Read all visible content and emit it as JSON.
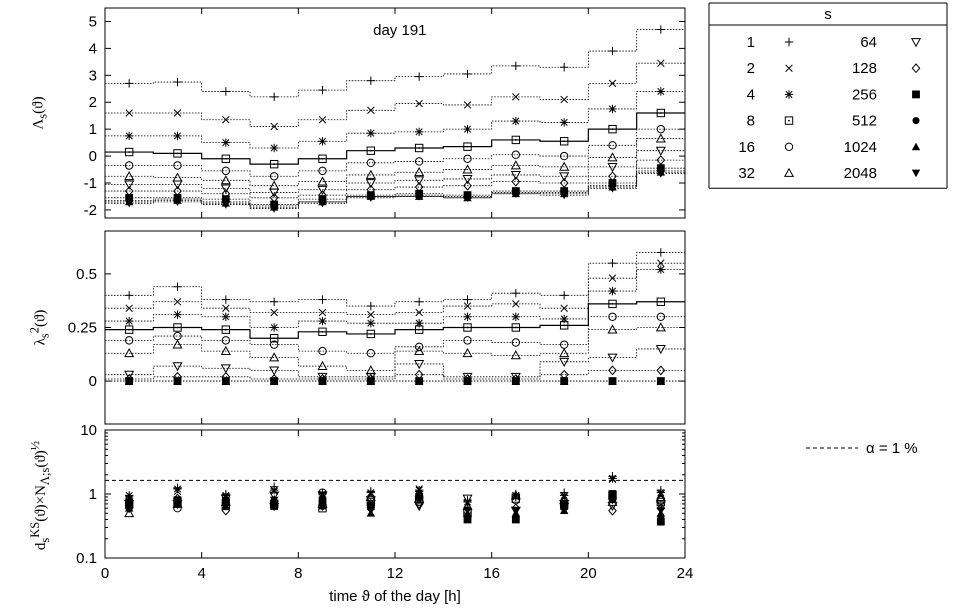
{
  "chart_data": [
    {
      "type": "line",
      "panel": "top",
      "annotation": "day 191",
      "ylabel_html": "Λ<sub>s</sub>(ϑ)",
      "xlim": [
        0,
        24
      ],
      "ylim": [
        -2.3,
        5.5
      ],
      "yticks": [
        -2,
        -1,
        0,
        1,
        2,
        3,
        4,
        5
      ],
      "x": [
        1,
        3,
        5,
        7,
        9,
        11,
        13,
        15,
        17,
        19,
        21,
        23
      ],
      "series": [
        {
          "name": "1",
          "marker": "plus",
          "values": [
            2.7,
            2.75,
            2.4,
            2.2,
            2.45,
            2.8,
            2.95,
            3.05,
            3.35,
            3.3,
            3.9,
            4.7
          ]
        },
        {
          "name": "2",
          "marker": "cross",
          "values": [
            1.6,
            1.6,
            1.35,
            1.1,
            1.35,
            1.7,
            1.95,
            1.9,
            2.2,
            2.1,
            2.7,
            3.45
          ]
        },
        {
          "name": "4",
          "marker": "star",
          "values": [
            0.75,
            0.75,
            0.5,
            0.3,
            0.55,
            0.85,
            0.9,
            1.0,
            1.3,
            1.25,
            1.75,
            2.4
          ]
        },
        {
          "name": "8",
          "marker": "boxdot",
          "values": [
            0.15,
            0.1,
            -0.1,
            -0.3,
            -0.1,
            0.2,
            0.3,
            0.35,
            0.6,
            0.55,
            1.0,
            1.6
          ]
        },
        {
          "name": "16",
          "marker": "circle",
          "values": [
            -0.35,
            -0.35,
            -0.55,
            -0.75,
            -0.55,
            -0.25,
            -0.2,
            -0.1,
            0.05,
            0.0,
            0.4,
            1.0
          ]
        },
        {
          "name": "32",
          "marker": "triangle",
          "values": [
            -0.75,
            -0.8,
            -0.9,
            -1.1,
            -0.95,
            -0.7,
            -0.6,
            -0.5,
            -0.35,
            -0.4,
            -0.05,
            0.65
          ]
        },
        {
          "name": "64",
          "marker": "triangle-down-open",
          "values": [
            -1.05,
            -1.05,
            -1.2,
            -1.35,
            -1.25,
            -1.0,
            -0.9,
            -0.85,
            -0.7,
            -0.75,
            -0.4,
            0.2
          ]
        },
        {
          "name": "128",
          "marker": "diamond",
          "values": [
            -1.3,
            -1.3,
            -1.4,
            -1.55,
            -1.45,
            -1.25,
            -1.15,
            -1.1,
            -0.95,
            -1.0,
            -0.75,
            -0.15
          ]
        },
        {
          "name": "256",
          "marker": "square-filled",
          "values": [
            -1.55,
            -1.55,
            -1.6,
            -1.8,
            -1.6,
            -1.45,
            -1.4,
            -1.45,
            -1.3,
            -1.3,
            -1.0,
            -0.45
          ]
        },
        {
          "name": "512",
          "marker": "circle-filled",
          "values": [
            -1.65,
            -1.6,
            -1.7,
            -1.85,
            -1.7,
            -1.5,
            -1.45,
            -1.5,
            -1.35,
            -1.35,
            -1.1,
            -0.55
          ]
        },
        {
          "name": "1024",
          "marker": "triangle-filled",
          "values": [
            -1.7,
            -1.65,
            -1.75,
            -1.9,
            -1.7,
            -1.5,
            -1.5,
            -1.55,
            -1.4,
            -1.4,
            -1.15,
            -0.6
          ]
        },
        {
          "name": "2048",
          "marker": "triangle-down-filled",
          "values": [
            -1.75,
            -1.7,
            -1.8,
            -1.95,
            -1.75,
            -1.55,
            -1.5,
            -1.55,
            -1.4,
            -1.45,
            -1.2,
            -0.65
          ]
        }
      ]
    },
    {
      "type": "line",
      "panel": "middle",
      "ylabel_html": "λ<sub>s</sub><sup>2</sup>(ϑ)",
      "xlim": [
        0,
        24
      ],
      "ylim": [
        -0.2,
        0.7
      ],
      "yticks": [
        0,
        0.25,
        0.5
      ],
      "ytick_labels": [
        "0",
        "0.25",
        "0.5"
      ],
      "x": [
        1,
        3,
        5,
        7,
        9,
        11,
        13,
        15,
        17,
        19,
        21,
        23
      ],
      "series": [
        {
          "name": "1",
          "marker": "plus",
          "values": [
            0.4,
            0.44,
            0.38,
            0.37,
            0.38,
            0.35,
            0.37,
            0.38,
            0.41,
            0.4,
            0.55,
            0.6
          ]
        },
        {
          "name": "2",
          "marker": "cross",
          "values": [
            0.34,
            0.37,
            0.34,
            0.32,
            0.32,
            0.31,
            0.32,
            0.35,
            0.36,
            0.34,
            0.48,
            0.55
          ]
        },
        {
          "name": "4",
          "marker": "star",
          "values": [
            0.28,
            0.31,
            0.3,
            0.25,
            0.28,
            0.27,
            0.27,
            0.3,
            0.3,
            0.29,
            0.42,
            0.52
          ]
        },
        {
          "name": "8",
          "marker": "boxdot",
          "values": [
            0.24,
            0.25,
            0.24,
            0.2,
            0.23,
            0.22,
            0.24,
            0.25,
            0.25,
            0.26,
            0.36,
            0.37
          ]
        },
        {
          "name": "16",
          "marker": "circle",
          "values": [
            0.19,
            0.21,
            0.19,
            0.17,
            0.14,
            0.13,
            0.16,
            0.19,
            0.18,
            0.17,
            0.3,
            0.3
          ]
        },
        {
          "name": "32",
          "marker": "triangle",
          "values": [
            0.13,
            0.17,
            0.14,
            0.11,
            0.07,
            0.05,
            0.14,
            0.13,
            0.12,
            0.13,
            0.24,
            0.25
          ]
        },
        {
          "name": "64",
          "marker": "triangle-down-open",
          "values": [
            0.03,
            0.07,
            0.06,
            0.05,
            0.02,
            0.02,
            0.08,
            0.02,
            0.02,
            0.09,
            0.11,
            0.15
          ]
        },
        {
          "name": "128",
          "marker": "diamond",
          "values": [
            0.01,
            0.02,
            0.02,
            0.01,
            0.01,
            0.01,
            0.03,
            0.01,
            0.01,
            0.03,
            0.05,
            0.05
          ]
        },
        {
          "name": "256",
          "marker": "square-filled",
          "values": [
            0,
            0,
            0,
            0,
            0,
            0,
            0,
            0,
            0,
            0,
            0,
            0
          ]
        },
        {
          "name": "512",
          "marker": "circle-filled",
          "values": [
            0,
            0,
            0,
            0,
            0,
            0,
            0,
            0,
            0,
            0,
            0,
            0
          ]
        },
        {
          "name": "1024",
          "marker": "triangle-filled",
          "values": [
            0,
            0,
            0,
            0,
            0,
            0,
            0,
            0,
            0,
            0,
            0,
            0
          ]
        },
        {
          "name": "2048",
          "marker": "triangle-down-filled",
          "values": [
            0,
            0,
            0,
            0,
            0,
            0,
            0,
            0,
            0,
            0,
            0,
            0
          ]
        }
      ]
    },
    {
      "type": "scatter",
      "panel": "bottom",
      "ylabel_html": "d<sub>s</sub><sup>KS</sup>(ϑ)×N<sub>Λ;s</sub>(ϑ)<sup>½</sup>",
      "xlabel": "time ϑ of the day  [h]",
      "xlim": [
        0,
        24
      ],
      "xticks": [
        0,
        4,
        8,
        12,
        16,
        20,
        24
      ],
      "ylog": true,
      "ylim": [
        0.1,
        10
      ],
      "yticks": [
        0.1,
        1,
        10
      ],
      "ytick_labels": [
        "0.1",
        "1",
        "10"
      ],
      "threshold": {
        "label": "α = 1 %",
        "value": 1.63,
        "style": "dashed"
      },
      "x": [
        1,
        3,
        5,
        7,
        9,
        11,
        13,
        15,
        17,
        19,
        21,
        23
      ],
      "series": [
        {
          "name": "1",
          "marker": "plus",
          "values": [
            0.9,
            1.25,
            1.0,
            1.3,
            1.05,
            1.1,
            1.1,
            0.8,
            1.0,
            1.05,
            1.9,
            1.15
          ]
        },
        {
          "name": "2",
          "marker": "cross",
          "values": [
            0.85,
            1.1,
            0.9,
            1.1,
            0.95,
            1.0,
            1.2,
            0.7,
            0.95,
            0.9,
            1.7,
            1.0
          ]
        },
        {
          "name": "4",
          "marker": "star",
          "values": [
            0.95,
            1.2,
            0.95,
            1.15,
            1.0,
            1.05,
            1.15,
            0.75,
            0.9,
            0.95,
            1.75,
            1.05
          ]
        },
        {
          "name": "8",
          "marker": "boxdot",
          "values": [
            0.7,
            0.75,
            0.65,
            0.7,
            0.6,
            0.75,
            0.8,
            0.5,
            0.85,
            0.7,
            0.95,
            0.75
          ]
        },
        {
          "name": "16",
          "marker": "circle",
          "values": [
            0.75,
            0.6,
            0.8,
            0.75,
            1.05,
            0.85,
            0.75,
            0.55,
            0.8,
            0.75,
            0.85,
            0.8
          ]
        },
        {
          "name": "32",
          "marker": "triangle",
          "values": [
            0.5,
            0.7,
            0.75,
            0.8,
            0.7,
            0.9,
            0.85,
            0.65,
            0.95,
            0.8,
            0.75,
            0.85
          ]
        },
        {
          "name": "64",
          "marker": "triangle-down-open",
          "values": [
            0.7,
            0.7,
            0.85,
            0.95,
            0.95,
            0.8,
            0.65,
            0.85,
            0.55,
            0.7,
            0.65,
            0.7
          ]
        },
        {
          "name": "128",
          "marker": "diamond",
          "values": [
            0.6,
            0.85,
            0.55,
            0.65,
            0.65,
            0.7,
            0.7,
            0.45,
            0.6,
            0.6,
            0.55,
            0.6
          ]
        },
        {
          "name": "256",
          "marker": "square-filled",
          "values": [
            0.7,
            0.8,
            0.75,
            0.65,
            0.75,
            0.65,
            0.9,
            0.4,
            0.4,
            0.65,
            1.0,
            0.37
          ]
        },
        {
          "name": "512",
          "marker": "circle-filled",
          "values": [
            0.65,
            0.75,
            0.7,
            0.7,
            0.7,
            0.6,
            0.95,
            0.45,
            0.45,
            0.6,
            0.9,
            0.45
          ]
        },
        {
          "name": "1024",
          "marker": "triangle-filled",
          "values": [
            0.6,
            0.7,
            0.65,
            0.75,
            0.65,
            0.5,
            1.0,
            0.5,
            0.5,
            0.55,
            0.85,
            0.5
          ]
        },
        {
          "name": "2048",
          "marker": "triangle-down-filled",
          "values": [
            0.75,
            0.8,
            0.8,
            0.8,
            0.8,
            0.55,
            0.85,
            0.55,
            0.55,
            0.7,
            0.8,
            0.55
          ]
        }
      ]
    }
  ],
  "legend": {
    "title": "s",
    "rows": [
      {
        "s1": "1",
        "m1": "plus",
        "s2": "64",
        "m2": "triangle-down-open"
      },
      {
        "s1": "2",
        "m1": "cross",
        "s2": "128",
        "m2": "diamond"
      },
      {
        "s1": "4",
        "m1": "star",
        "s2": "256",
        "m2": "square-filled"
      },
      {
        "s1": "8",
        "m1": "boxdot",
        "s2": "512",
        "m2": "circle-filled"
      },
      {
        "s1": "16",
        "m1": "circle",
        "s2": "1024",
        "m2": "triangle-filled"
      },
      {
        "s1": "32",
        "m1": "triangle",
        "s2": "2048",
        "m2": "triangle-down-filled"
      }
    ]
  },
  "bold_series": "8",
  "colors": {
    "line": "#000000",
    "background": "#ffffff"
  }
}
